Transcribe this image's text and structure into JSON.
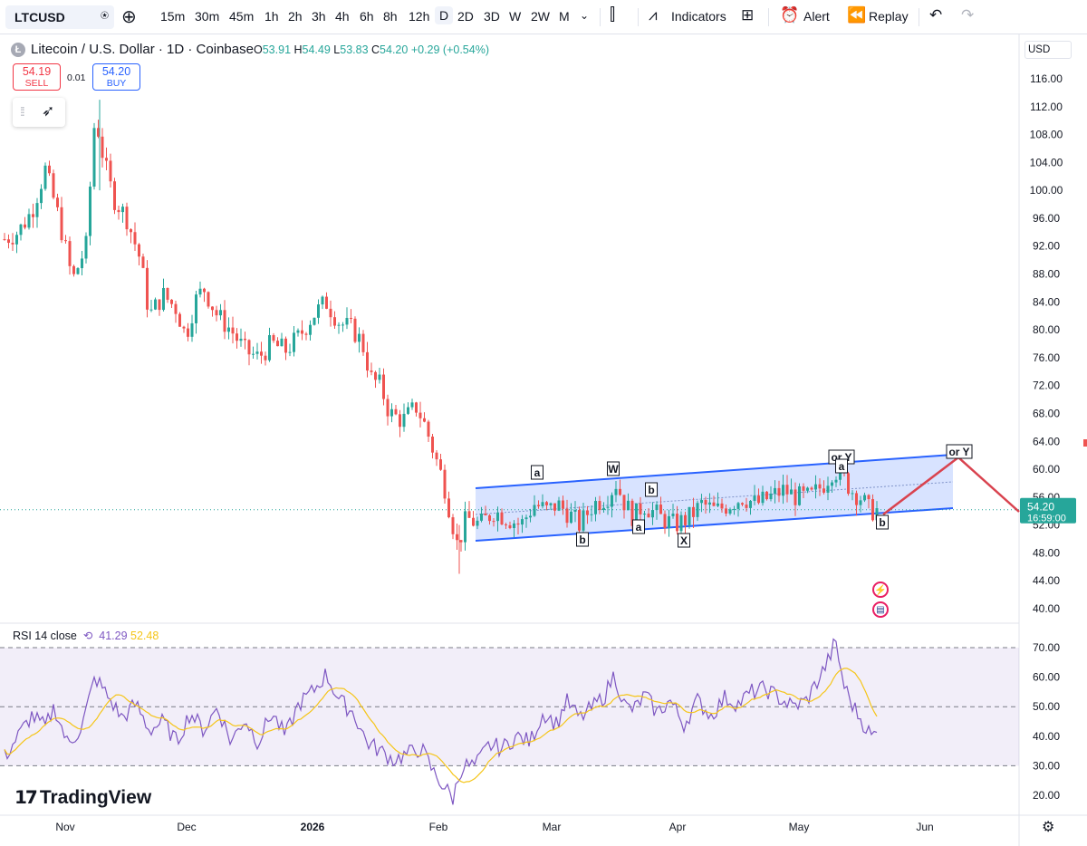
{
  "toolbar": {
    "symbol": "LTCUSD",
    "intervals": [
      "15m",
      "30m",
      "45m",
      "1h",
      "2h",
      "3h",
      "4h",
      "6h",
      "8h",
      "12h",
      "D",
      "2D",
      "3D",
      "W",
      "2W",
      "M"
    ],
    "active_interval": "D",
    "indicators_label": "Indicators",
    "alert_label": "Alert",
    "replay_label": "Replay"
  },
  "legend": {
    "title": "Litecoin / U.S. Dollar · 1D · Coinbase",
    "o_label": "O",
    "o": "53.91",
    "h_label": "H",
    "h": "54.49",
    "l_label": "L",
    "l": "53.83",
    "c_label": "C",
    "c": "54.20",
    "change": "+0.29 (+0.54%)"
  },
  "trade": {
    "sell_price": "54.19",
    "sell_label": "SELL",
    "spread": "0.01",
    "buy_price": "54.20",
    "buy_label": "BUY"
  },
  "price_axis": {
    "currency": "USD",
    "labels": [
      "116.00",
      "112.00",
      "108.00",
      "104.00",
      "100.00",
      "96.00",
      "92.00",
      "88.00",
      "84.00",
      "80.00",
      "76.00",
      "72.00",
      "68.00",
      "64.00",
      "60.00",
      "56.00",
      "52.00",
      "48.00",
      "44.00",
      "40.00"
    ],
    "current_price": "54.20",
    "countdown": "16:59:00"
  },
  "time_axis": {
    "labels": [
      "Nov",
      "Dec",
      "2026",
      "Feb",
      "Mar",
      "Apr",
      "May",
      "Jun"
    ]
  },
  "wave_labels": [
    "a",
    "W",
    "b",
    "b",
    "a",
    "X",
    "or Y",
    "a",
    "b",
    "or Y"
  ],
  "rsi": {
    "title": "RSI 14 close",
    "value": "41.29",
    "ma_value": "52.48",
    "axis_labels": [
      "70.00",
      "60.00",
      "50.00",
      "40.00",
      "30.00",
      "20.00"
    ]
  },
  "brand": "TradingView",
  "colors": {
    "up": "#26a69a",
    "down": "#ef5350",
    "channel": "#2962ff",
    "projection": "#d9434f",
    "rsi_line": "#7e57c2",
    "rsi_ma": "#f5c518",
    "price_badge": "#26a69a"
  },
  "icons": [
    "alert-icon",
    "replay-icon",
    "undo-icon",
    "redo-icon",
    "indicators-icon",
    "templates-icon",
    "compare-icon",
    "candles-icon",
    "settings-icon"
  ]
}
